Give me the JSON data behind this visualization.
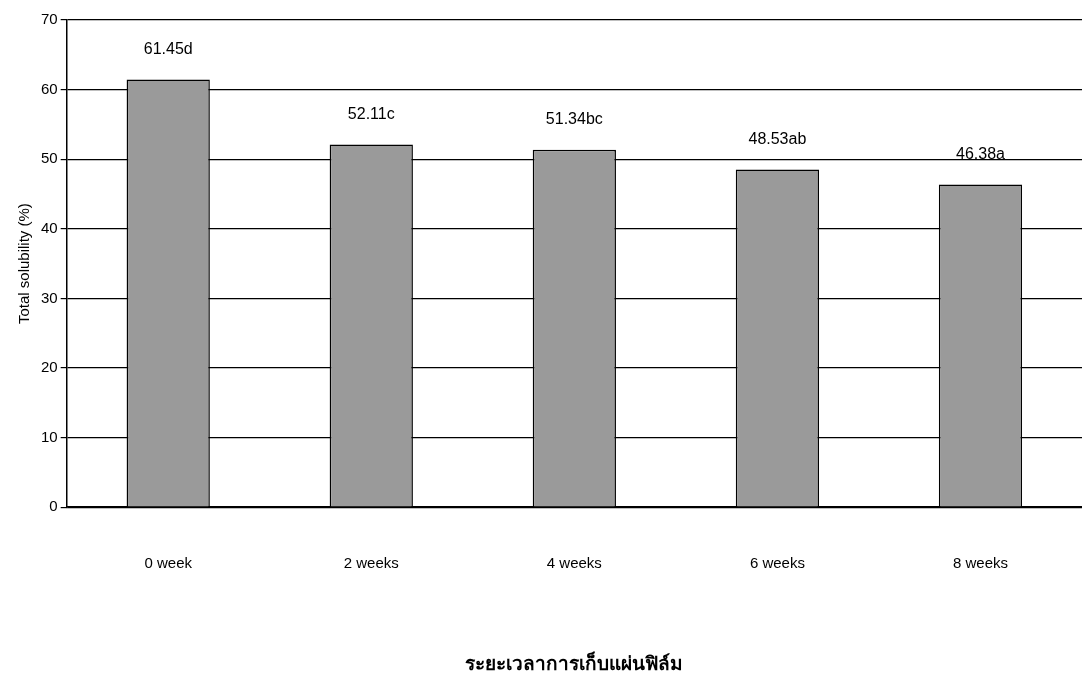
{
  "chart_data": {
    "type": "bar",
    "xlabel": "ระยะเวลาการเก็บแผ่นฟิล์ม",
    "ylabel": "Total solubility (%)",
    "categories": [
      "0 week",
      "2 weeks",
      "4 weeks",
      "6 weeks",
      "8 weeks"
    ],
    "values": [
      61.45,
      52.11,
      51.34,
      48.53,
      46.38
    ],
    "value_labels": [
      "61.45d",
      "52.11c",
      "51.34bc",
      "48.53ab",
      "46.38a"
    ],
    "color": "#9a9a9a",
    "ylim": [
      0,
      70
    ],
    "yticks": [
      0,
      10,
      20,
      30,
      40,
      50,
      60,
      70
    ],
    "grid": "y",
    "legend": false
  }
}
